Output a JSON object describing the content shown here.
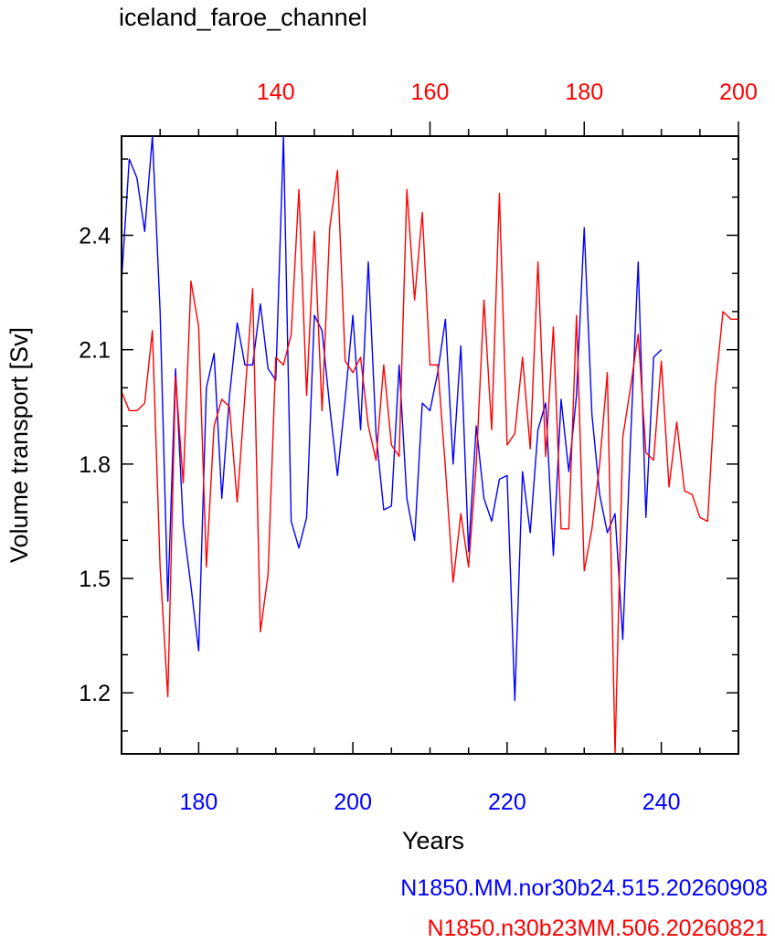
{
  "chart_data": {
    "type": "line",
    "title": "iceland_faroe_channel",
    "xlabel": "Years",
    "ylabel": "Volume transport [Sv]",
    "ylim": [
      1.04,
      2.66
    ],
    "y_ticks": [
      1.2,
      1.5,
      1.8,
      2.1,
      2.4
    ],
    "y_tick_labels": [
      "1.2",
      "1.5",
      "1.8",
      "2.1",
      "2.4"
    ],
    "bottom_axis": {
      "color": "#0000ff",
      "xlim": [
        170,
        250
      ],
      "ticks": [
        180,
        200,
        220,
        240
      ],
      "tick_labels": [
        "180",
        "200",
        "220",
        "240"
      ]
    },
    "top_axis": {
      "color": "#ff0000",
      "xlim": [
        120,
        200
      ],
      "ticks": [
        140,
        160,
        180,
        200
      ],
      "tick_labels": [
        "140",
        "160",
        "180",
        "200"
      ]
    },
    "series": [
      {
        "name": "N1850.MM.nor30b24.515.20260908",
        "color": "#0000ff",
        "axis": "bottom",
        "x": [
          170,
          171,
          172,
          173,
          174,
          175,
          176,
          177,
          178,
          179,
          180,
          181,
          182,
          183,
          184,
          185,
          186,
          187,
          188,
          189,
          190,
          191,
          192,
          193,
          194,
          195,
          196,
          197,
          198,
          199,
          200,
          201,
          202,
          203,
          204,
          205,
          206,
          207,
          208,
          209,
          210,
          211,
          212,
          213,
          214,
          215,
          216,
          217,
          218,
          219,
          220,
          221,
          222,
          223,
          224,
          225,
          226,
          227,
          228,
          229,
          230,
          231,
          232,
          233,
          234,
          235,
          236,
          237,
          238,
          239,
          240
        ],
        "values": [
          2.28,
          2.6,
          2.55,
          2.41,
          2.66,
          2.2,
          1.44,
          2.05,
          1.64,
          1.48,
          1.31,
          2.0,
          2.09,
          1.71,
          1.98,
          2.17,
          2.06,
          2.06,
          2.22,
          2.05,
          2.02,
          2.66,
          1.65,
          1.58,
          1.66,
          2.19,
          2.15,
          1.95,
          1.77,
          1.97,
          2.19,
          1.89,
          2.33,
          1.88,
          1.68,
          1.69,
          2.06,
          1.71,
          1.6,
          1.96,
          1.94,
          2.04,
          2.18,
          1.8,
          2.11,
          1.57,
          1.9,
          1.71,
          1.65,
          1.76,
          1.77,
          1.18,
          1.78,
          1.62,
          1.89,
          1.96,
          1.56,
          1.97,
          1.78,
          1.98,
          2.42,
          1.93,
          1.72,
          1.62,
          1.67,
          1.34,
          1.86,
          2.33,
          1.66,
          2.08,
          2.1
        ]
      },
      {
        "name": "N1850.n30b23MM.506.20260821",
        "color": "#ff0000",
        "axis": "top",
        "x": [
          120,
          121,
          122,
          123,
          124,
          125,
          126,
          127,
          128,
          129,
          130,
          131,
          132,
          133,
          134,
          135,
          136,
          137,
          138,
          139,
          140,
          141,
          142,
          143,
          144,
          145,
          146,
          147,
          148,
          149,
          150,
          151,
          152,
          153,
          154,
          155,
          156,
          157,
          158,
          159,
          160,
          161,
          162,
          163,
          164,
          165,
          166,
          167,
          168,
          169,
          170,
          171,
          172,
          173,
          174,
          175,
          176,
          177,
          178,
          179,
          180,
          181,
          182,
          183,
          184,
          185,
          186,
          187,
          188,
          189,
          190,
          191,
          192,
          193,
          194,
          195,
          196,
          197,
          198,
          199,
          200
        ],
        "values": [
          1.99,
          1.94,
          1.94,
          1.96,
          2.15,
          1.53,
          1.19,
          2.03,
          1.75,
          2.28,
          2.16,
          1.53,
          1.9,
          1.97,
          1.95,
          1.7,
          1.98,
          2.26,
          1.36,
          1.51,
          2.08,
          2.06,
          2.14,
          2.52,
          1.98,
          2.41,
          1.94,
          2.42,
          2.57,
          2.07,
          2.04,
          2.08,
          1.9,
          1.81,
          2.06,
          1.85,
          1.82,
          2.52,
          2.23,
          2.46,
          2.06,
          2.06,
          1.79,
          1.49,
          1.67,
          1.53,
          1.8,
          2.23,
          1.89,
          2.51,
          1.85,
          1.88,
          2.08,
          1.84,
          2.33,
          1.82,
          2.16,
          1.63,
          1.63,
          2.19,
          1.52,
          1.63,
          1.8,
          2.04,
          1.04,
          1.87,
          2.0,
          2.14,
          1.83,
          1.81,
          2.07,
          1.74,
          1.91,
          1.73,
          1.72,
          1.66,
          1.65,
          2.0,
          2.2,
          2.18,
          2.18
        ]
      }
    ]
  }
}
